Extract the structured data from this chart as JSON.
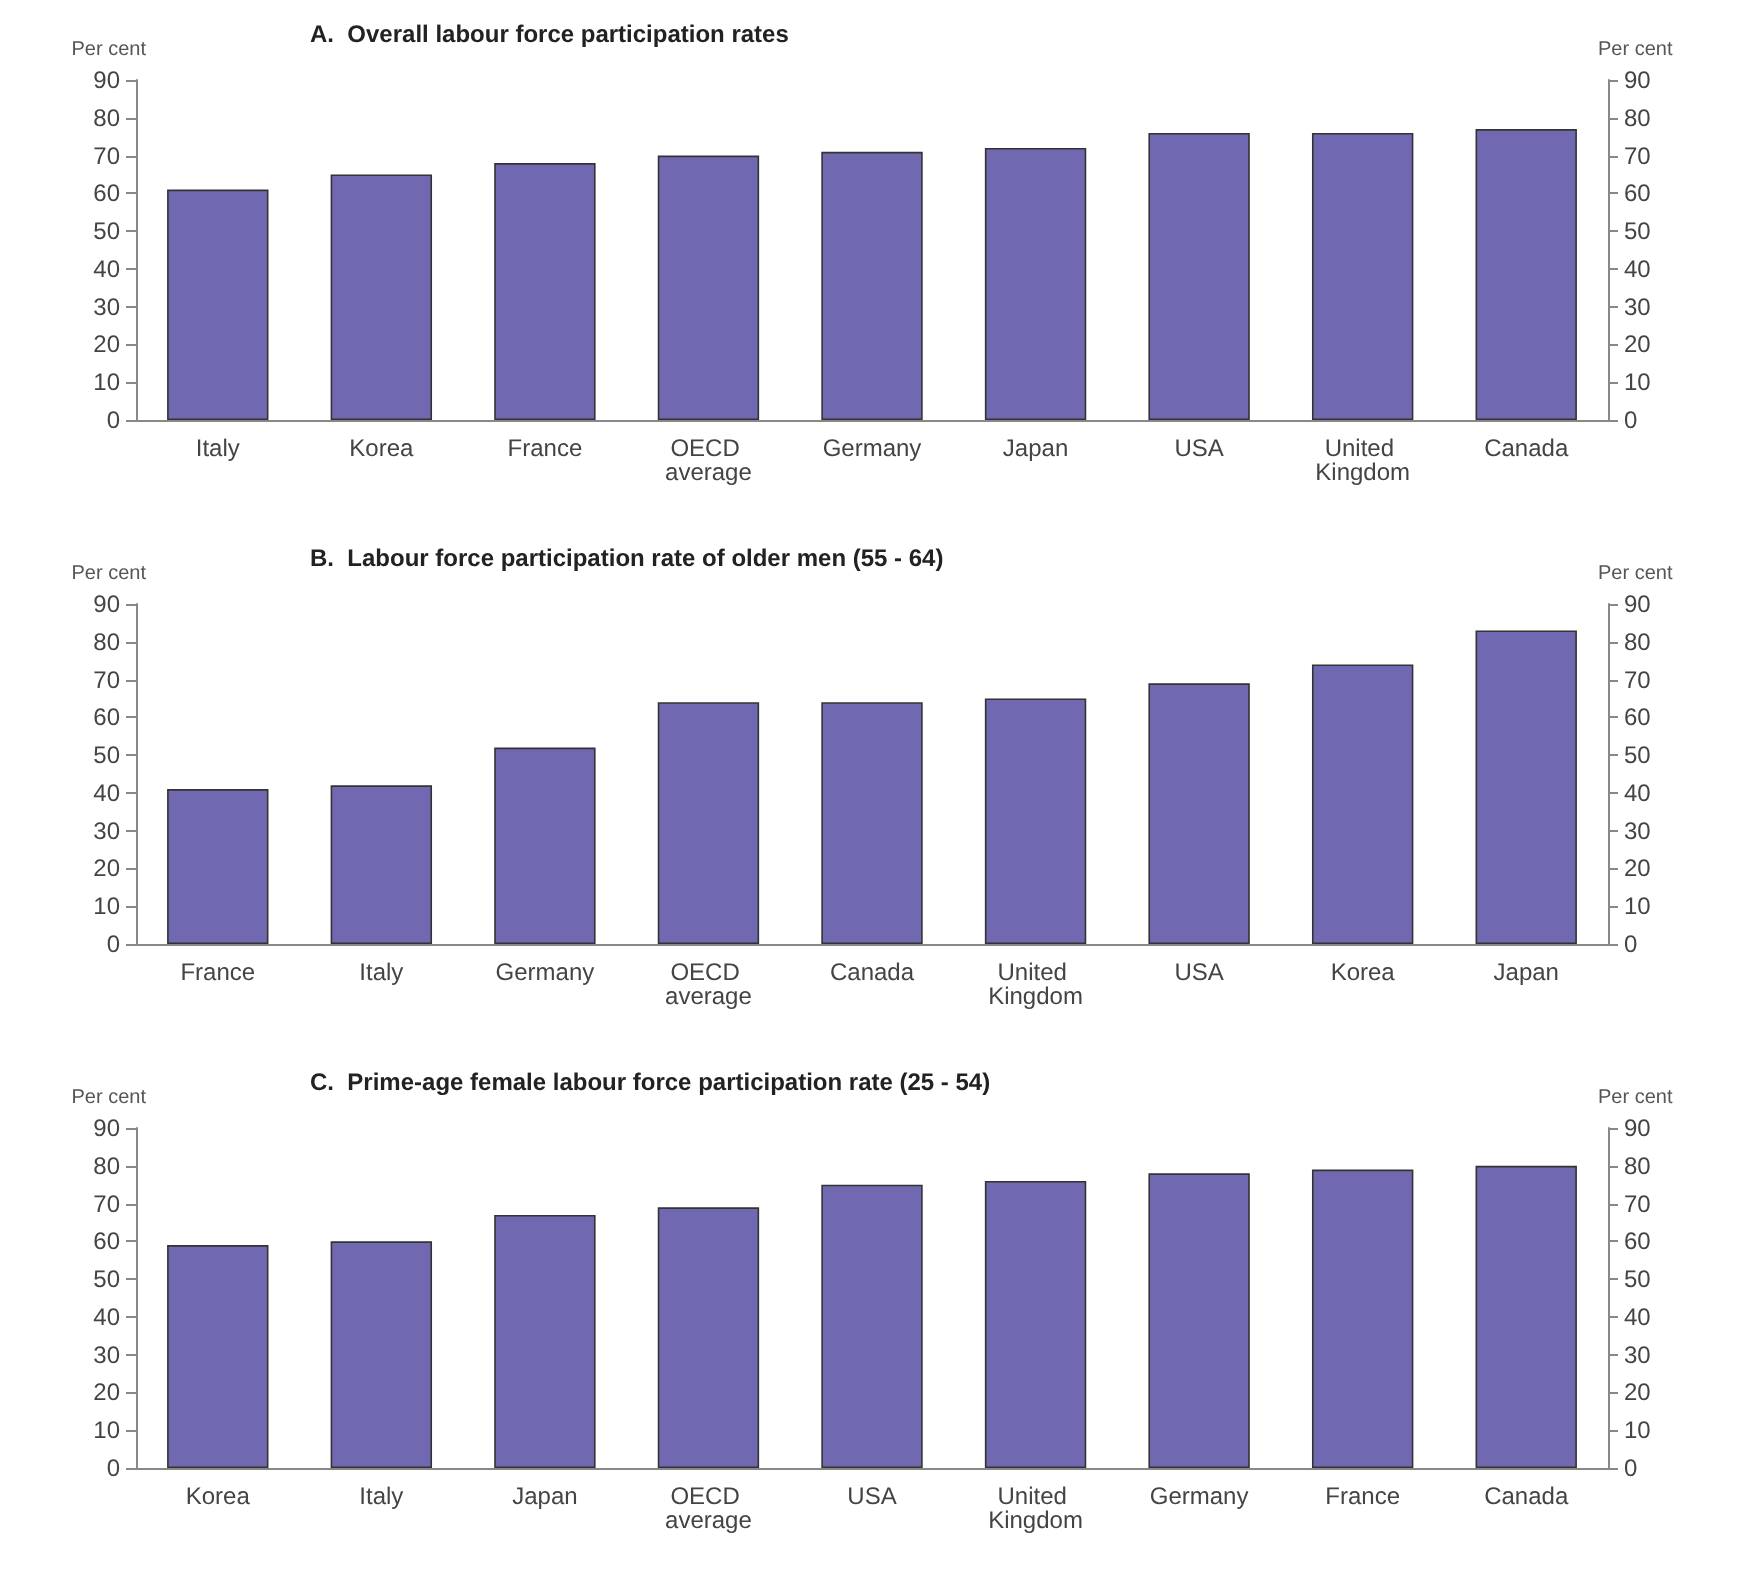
{
  "chart_data": [
    {
      "type": "bar",
      "title": "A.  Overall labour force participation rates",
      "ylabel": "Per cent",
      "y2label": "Per cent",
      "categories": [
        "Italy",
        "Korea",
        "France",
        "OECD average",
        "Germany",
        "Japan",
        "USA",
        "United Kingdom",
        "Canada"
      ],
      "values": [
        61,
        65,
        68,
        70,
        71,
        72,
        76,
        76,
        77
      ],
      "color": "#7068b0",
      "ylim": [
        0,
        90
      ],
      "yticks": [
        0,
        10,
        20,
        30,
        40,
        50,
        60,
        70,
        80,
        90
      ],
      "y2lim": [
        0,
        90
      ],
      "y2ticks": [
        0,
        10,
        20,
        30,
        40,
        50,
        60,
        70,
        80,
        90
      ],
      "grid": false
    },
    {
      "type": "bar",
      "title": "B.  Labour force participation rate of older men (55 - 64)",
      "ylabel": "Per cent",
      "y2label": "Per cent",
      "categories": [
        "France",
        "Italy",
        "Germany",
        "OECD average",
        "Canada",
        "United Kingdom",
        "USA",
        "Korea",
        "Japan"
      ],
      "values": [
        41,
        42,
        52,
        64,
        64,
        65,
        69,
        74,
        83
      ],
      "color": "#7068b0",
      "ylim": [
        0,
        90
      ],
      "yticks": [
        0,
        10,
        20,
        30,
        40,
        50,
        60,
        70,
        80,
        90
      ],
      "y2lim": [
        0,
        90
      ],
      "y2ticks": [
        0,
        10,
        20,
        30,
        40,
        50,
        60,
        70,
        80,
        90
      ],
      "grid": false
    },
    {
      "type": "bar",
      "title": "C.  Prime-age female labour force participation rate (25 - 54)",
      "ylabel": "Per cent",
      "y2label": "Per cent",
      "categories": [
        "Korea",
        "Italy",
        "Japan",
        "OECD average",
        "USA",
        "United Kingdom",
        "Germany",
        "France",
        "Canada"
      ],
      "values": [
        59,
        60,
        67,
        69,
        75,
        76,
        78,
        79,
        80
      ],
      "color": "#7068b0",
      "ylim": [
        0,
        90
      ],
      "yticks": [
        0,
        10,
        20,
        30,
        40,
        50,
        60,
        70,
        80,
        90
      ],
      "y2lim": [
        0,
        90
      ],
      "y2ticks": [
        0,
        10,
        20,
        30,
        40,
        50,
        60,
        70,
        80,
        90
      ],
      "grid": false
    }
  ]
}
